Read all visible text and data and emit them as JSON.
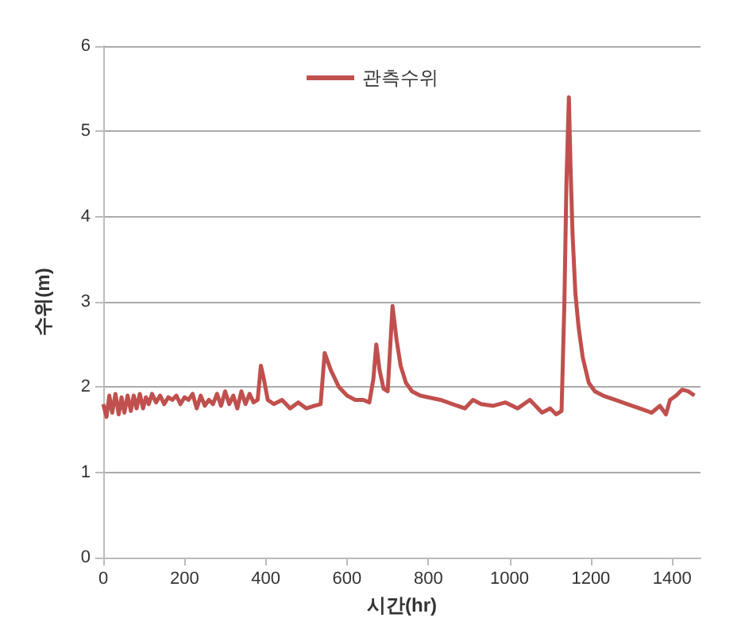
{
  "chart_data": {
    "type": "line",
    "xlabel": "시간(hr)",
    "ylabel": "수위(m)",
    "xlim": [
      0,
      1470
    ],
    "ylim": [
      0,
      6
    ],
    "xticks": [
      0,
      200,
      400,
      600,
      800,
      1000,
      1200,
      1400
    ],
    "yticks": [
      0,
      1,
      2,
      3,
      4,
      5,
      6
    ],
    "grid": "y",
    "legend": "top",
    "marker": "none",
    "line_style": "solid",
    "series": [
      {
        "name": "관측수위",
        "color": "#c0504d",
        "x": [
          0,
          8,
          15,
          22,
          30,
          38,
          45,
          52,
          60,
          68,
          75,
          82,
          90,
          98,
          105,
          112,
          120,
          130,
          140,
          150,
          160,
          170,
          180,
          190,
          200,
          210,
          220,
          230,
          240,
          250,
          260,
          270,
          280,
          290,
          300,
          310,
          320,
          330,
          340,
          350,
          360,
          370,
          380,
          388,
          395,
          405,
          420,
          440,
          460,
          480,
          500,
          520,
          535,
          545,
          560,
          580,
          600,
          620,
          640,
          655,
          665,
          672,
          680,
          690,
          700,
          712,
          722,
          732,
          745,
          760,
          780,
          800,
          830,
          860,
          890,
          910,
          930,
          960,
          990,
          1020,
          1050,
          1080,
          1100,
          1115,
          1128,
          1135,
          1140,
          1146,
          1150,
          1155,
          1162,
          1170,
          1180,
          1195,
          1210,
          1230,
          1260,
          1290,
          1320,
          1350,
          1370,
          1385,
          1395,
          1410,
          1425,
          1440,
          1455
        ],
        "values": [
          1.8,
          1.65,
          1.9,
          1.7,
          1.92,
          1.68,
          1.88,
          1.7,
          1.9,
          1.72,
          1.9,
          1.75,
          1.92,
          1.75,
          1.88,
          1.8,
          1.92,
          1.82,
          1.9,
          1.8,
          1.88,
          1.85,
          1.9,
          1.8,
          1.88,
          1.85,
          1.92,
          1.75,
          1.9,
          1.78,
          1.85,
          1.8,
          1.92,
          1.78,
          1.95,
          1.8,
          1.9,
          1.75,
          1.95,
          1.8,
          1.92,
          1.82,
          1.85,
          2.25,
          2.1,
          1.85,
          1.8,
          1.85,
          1.75,
          1.82,
          1.75,
          1.78,
          1.8,
          2.4,
          2.2,
          2.0,
          1.9,
          1.85,
          1.85,
          1.82,
          2.1,
          2.5,
          2.2,
          1.98,
          1.95,
          2.95,
          2.55,
          2.25,
          2.05,
          1.95,
          1.9,
          1.88,
          1.85,
          1.8,
          1.75,
          1.85,
          1.8,
          1.78,
          1.82,
          1.75,
          1.85,
          1.7,
          1.75,
          1.68,
          1.72,
          3.0,
          4.4,
          5.4,
          4.6,
          3.8,
          3.1,
          2.7,
          2.35,
          2.05,
          1.95,
          1.9,
          1.85,
          1.8,
          1.75,
          1.7,
          1.78,
          1.68,
          1.85,
          1.9,
          1.97,
          1.95,
          1.9
        ]
      }
    ]
  }
}
